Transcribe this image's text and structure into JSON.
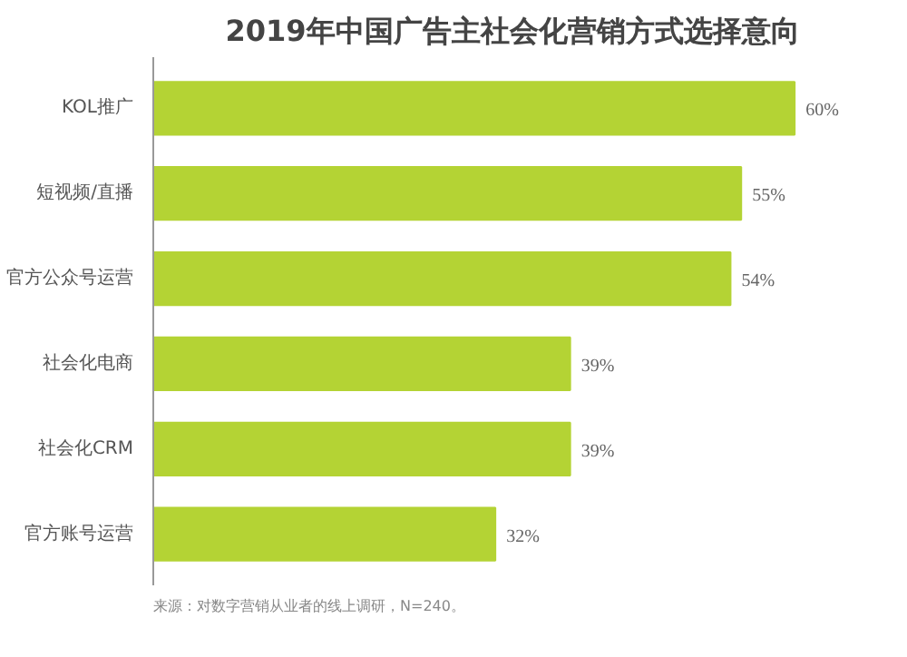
{
  "chart_data": {
    "type": "bar",
    "orientation": "horizontal",
    "title": "2019年中国广告主社会化营销方式选择意向",
    "categories": [
      "KOL推广",
      "短视频/直播",
      "官方公众号运营",
      "社会化电商",
      "社会化CRM",
      "官方账号运营"
    ],
    "values": [
      60,
      55,
      54,
      39,
      39,
      32
    ],
    "color": "#b4d334",
    "value_labels": [
      "60%",
      "55%",
      "54%",
      "39%",
      "39%",
      "32%"
    ],
    "annotations": [
      "来源：对数字营销从业者的线上调研，N=240。"
    ]
  }
}
